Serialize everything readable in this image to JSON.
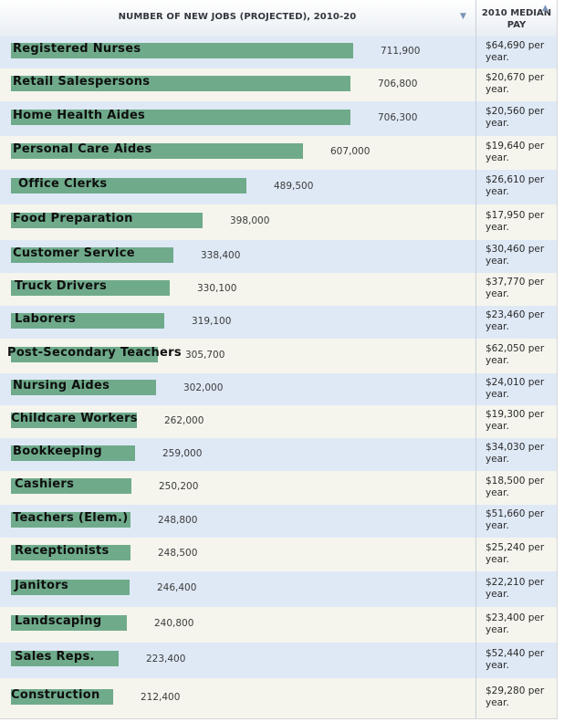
{
  "header": {
    "jobs_title": "NUMBER OF NEW JOBS (PROJECTED), 2010-20",
    "pay_title_line1": "2010 MEDIAN",
    "pay_title_line2": "PAY",
    "sort_icon": "sort-arrow-icon"
  },
  "chart_data": {
    "type": "bar",
    "orientation": "horizontal",
    "title": "",
    "xlabel": "",
    "ylabel": "",
    "xlim": [
      0,
      711900
    ],
    "colors": {
      "bar": "#6fab8b",
      "row_odd": "#dfe9f6",
      "row_even": "#f5f5ed"
    },
    "categories": [
      "Registered Nurses",
      "Retail Salespersons",
      "Home Health Aides",
      "Personal Care Aides",
      "Office Clerks",
      "Food Preparation",
      "Customer Service",
      "Truck Drivers",
      "Laborers",
      "Post-Secondary Teachers",
      "Nursing Aides",
      "Childcare Workers",
      "Bookkeeping",
      "Cashiers",
      "Teachers (Elem.)",
      "Receptionists",
      "Janitors",
      "Landscaping",
      "Sales Reps.",
      "Construction"
    ],
    "values": [
      711900,
      706800,
      706300,
      607000,
      489500,
      398000,
      338400,
      330100,
      319100,
      305700,
      302000,
      262000,
      259000,
      250200,
      248800,
      248500,
      246400,
      240800,
      223400,
      212400
    ],
    "value_labels": [
      "711,900",
      "706,800",
      "706,300",
      "607,000",
      "489,500",
      "398,000",
      "338,400",
      "330,100",
      "319,100",
      "305,700",
      "302,000",
      "262,000",
      "259,000",
      "250,200",
      "248,800",
      "248,500",
      "246,400",
      "240,800",
      "223,400",
      "212,400"
    ],
    "pay": [
      [
        "$64,690 per",
        "year."
      ],
      [
        "$20,670 per",
        "year."
      ],
      [
        "$20,560 per",
        "year."
      ],
      [
        "$19,640 per",
        "year."
      ],
      [
        "$26,610 per",
        "year."
      ],
      [
        "$17,950 per",
        "year."
      ],
      [
        "$30,460 per",
        "year."
      ],
      [
        "$37,770 per",
        "year."
      ],
      [
        "$23,460 per",
        "year."
      ],
      [
        "$62,050 per",
        "year."
      ],
      [
        "$24,010 per",
        "year."
      ],
      [
        "$19,300 per",
        "year."
      ],
      [
        "$34,030 per",
        "year."
      ],
      [
        "$18,500 per",
        "year."
      ],
      [
        "$51,660 per",
        "year."
      ],
      [
        "$25,240 per",
        "year."
      ],
      [
        "$22,210 per",
        "year."
      ],
      [
        "$23,400 per",
        "year."
      ],
      [
        "$52,440 per",
        "year."
      ],
      [
        "$29,280 per",
        "year."
      ]
    ]
  }
}
